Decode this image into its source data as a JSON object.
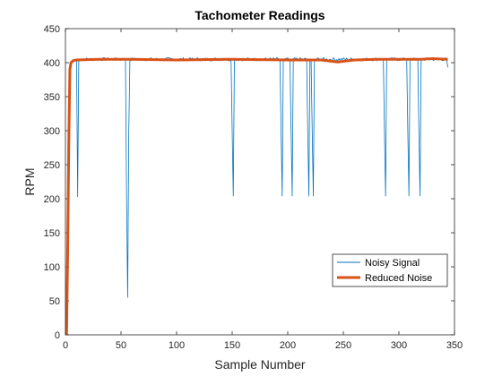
{
  "chart_data": {
    "type": "line",
    "title": "Tachometer Readings",
    "xlabel": "Sample Number",
    "ylabel": "RPM",
    "xlim": [
      0,
      350
    ],
    "ylim": [
      0,
      450
    ],
    "xticks": [
      0,
      50,
      100,
      150,
      200,
      250,
      300,
      350
    ],
    "yticks": [
      0,
      50,
      100,
      150,
      200,
      250,
      300,
      350,
      400,
      450
    ],
    "legend_position": "lower-right",
    "series": [
      {
        "name": "Noisy Signal",
        "color": "#0072BD",
        "style": "thin",
        "steady_level": 405,
        "points": [
          [
            1,
            0
          ],
          [
            2,
            150
          ],
          [
            3,
            300
          ],
          [
            4,
            395
          ],
          [
            5,
            402
          ],
          [
            6,
            403
          ],
          [
            7,
            404
          ],
          [
            9,
            404
          ],
          [
            10,
            405
          ],
          [
            11,
            203
          ],
          [
            12,
            404
          ],
          [
            54,
            404
          ],
          [
            55,
            200
          ],
          [
            56,
            55
          ],
          [
            57,
            300
          ],
          [
            58,
            404
          ],
          [
            149,
            405
          ],
          [
            150,
            300
          ],
          [
            151,
            204
          ],
          [
            152,
            405
          ],
          [
            193,
            404
          ],
          [
            194,
            300
          ],
          [
            195,
            204
          ],
          [
            196,
            405
          ],
          [
            202,
            404
          ],
          [
            203,
            300
          ],
          [
            204,
            204
          ],
          [
            205,
            405
          ],
          [
            217,
            405
          ],
          [
            218,
            300
          ],
          [
            219,
            204
          ],
          [
            220,
            405
          ],
          [
            221,
            405
          ],
          [
            222,
            300
          ],
          [
            223,
            204
          ],
          [
            224,
            405
          ],
          [
            286,
            405
          ],
          [
            287,
            300
          ],
          [
            288,
            204
          ],
          [
            289,
            405
          ],
          [
            307,
            405
          ],
          [
            308,
            300
          ],
          [
            309,
            204
          ],
          [
            310,
            405
          ],
          [
            317,
            405
          ],
          [
            318,
            300
          ],
          [
            319,
            204
          ],
          [
            320,
            405
          ],
          [
            343,
            405
          ],
          [
            344,
            393
          ]
        ]
      },
      {
        "name": "Reduced Noise",
        "color": "#D95319",
        "style": "thick",
        "points": [
          [
            1,
            0
          ],
          [
            2,
            120
          ],
          [
            3,
            280
          ],
          [
            4,
            390
          ],
          [
            5,
            400
          ],
          [
            7,
            403
          ],
          [
            10,
            404
          ],
          [
            30,
            405
          ],
          [
            60,
            405
          ],
          [
            100,
            404
          ],
          [
            150,
            405
          ],
          [
            200,
            404
          ],
          [
            230,
            404
          ],
          [
            240,
            402
          ],
          [
            245,
            401
          ],
          [
            250,
            402
          ],
          [
            260,
            404
          ],
          [
            280,
            405
          ],
          [
            300,
            405
          ],
          [
            320,
            405
          ],
          [
            330,
            406
          ],
          [
            344,
            405
          ]
        ]
      }
    ]
  }
}
